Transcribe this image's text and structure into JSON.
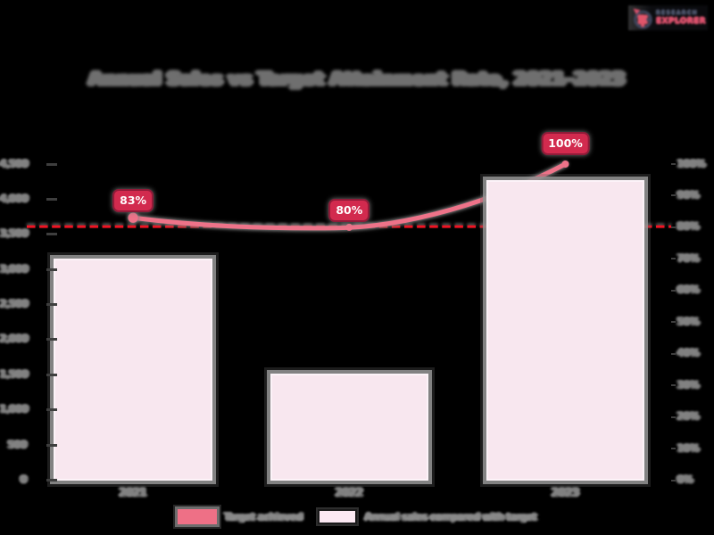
{
  "page": {
    "background": "#000000",
    "title": "Annual Sales vs Target Attainment Rate, 2021–2023"
  },
  "logo": {
    "line1": "RESEARCH",
    "line2": "EXPLORER",
    "icon": "pie-flower-logo-icon",
    "colors": {
      "line1": "#4b5268",
      "line2": "#d8506b",
      "ring": "#3d4254",
      "blob": "#e0556a"
    }
  },
  "chart_data": {
    "type": "bar+line dual axis",
    "title": "Annual Sales vs Target Attainment Rate, 2021–2023",
    "categories": [
      "2021",
      "2022",
      "2023"
    ],
    "series": [
      {
        "name": "Annual sales compared with target",
        "type": "bar",
        "axis": "left",
        "values": [
          3150,
          1520,
          4270
        ],
        "fill": "#f8e7ef",
        "border": "#fcf3f8"
      },
      {
        "name": "Target achieved",
        "type": "line",
        "axis": "right",
        "values": [
          83,
          80,
          100
        ],
        "labels": [
          "83%",
          "80%",
          "100%"
        ],
        "color": "#ee7389"
      }
    ],
    "target_line": {
      "value": 80,
      "axis": "right",
      "color": "#f01322",
      "style": "dashed"
    },
    "left_axis": {
      "min": 0,
      "max": 4500,
      "step": 500,
      "tick_labels": [
        "4,500",
        "4,000",
        "3,500",
        "3,000",
        "2,500",
        "2,000",
        "1,500",
        "1,000",
        "500",
        "0"
      ]
    },
    "right_axis": {
      "min": 0,
      "max": 100,
      "step": 10,
      "tick_labels": [
        "100%",
        "90%",
        "80%",
        "70%",
        "60%",
        "50%",
        "40%",
        "30%",
        "20%",
        "10%",
        "0%"
      ]
    },
    "grid": false,
    "legend_position": "bottom",
    "callout": {
      "fill": "#d22a4e",
      "border": "#8f1b38",
      "text_color": "#ffffff"
    }
  },
  "legend": {
    "items": [
      {
        "label": "Target achieved",
        "swatch_color": "#ee7086"
      },
      {
        "label": "Annual sales compared with target",
        "swatch_color": "#fce9f3"
      }
    ]
  }
}
